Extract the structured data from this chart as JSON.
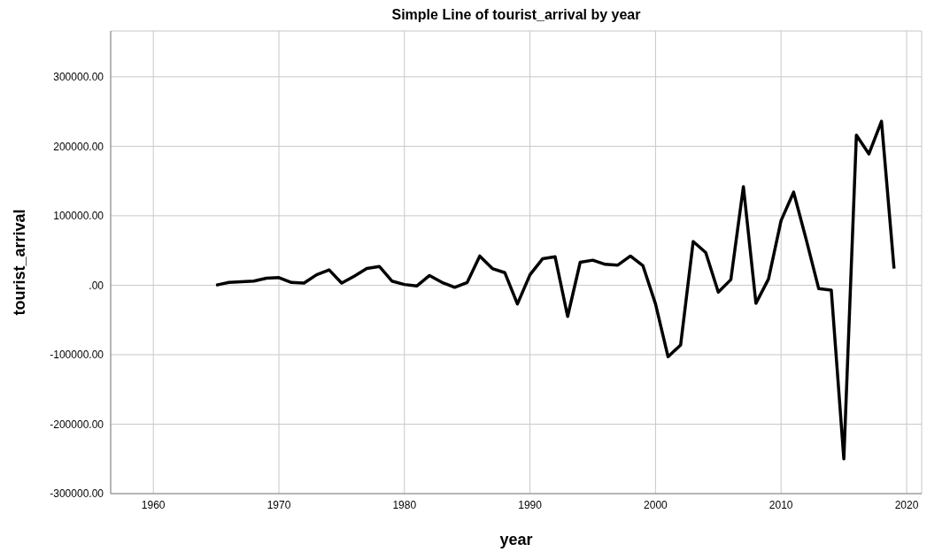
{
  "chart_data": {
    "type": "line",
    "title": "Simple Line of tourist_arrival by year",
    "xlabel": "year",
    "ylabel": "tourist_arrival",
    "x": [
      1965,
      1966,
      1967,
      1968,
      1969,
      1970,
      1971,
      1972,
      1973,
      1974,
      1975,
      1976,
      1977,
      1978,
      1979,
      1980,
      1981,
      1982,
      1983,
      1984,
      1985,
      1986,
      1987,
      1988,
      1989,
      1990,
      1991,
      1992,
      1993,
      1994,
      1995,
      1996,
      1997,
      1998,
      1999,
      2000,
      2001,
      2002,
      2003,
      2004,
      2005,
      2006,
      2007,
      2008,
      2009,
      2010,
      2011,
      2012,
      2013,
      2014,
      2015,
      2016,
      2017,
      2018,
      2019
    ],
    "series": [
      {
        "color": "#000000",
        "values": [
          0,
          4000,
          5000,
          6000,
          10000,
          11000,
          4000,
          3000,
          15000,
          22000,
          3000,
          13000,
          24000,
          27000,
          6000,
          1000,
          -1000,
          14000,
          4000,
          -3000,
          4000,
          42000,
          24000,
          18000,
          -27000,
          15000,
          38000,
          41000,
          -45000,
          33000,
          36000,
          30000,
          29000,
          42000,
          28000,
          -27000,
          -103000,
          -86000,
          63000,
          47000,
          -10000,
          8000,
          142000,
          -26000,
          9000,
          93000,
          134000,
          66000,
          -5000,
          -7000,
          -250000,
          216000,
          189000,
          236000,
          24000
        ]
      }
    ],
    "xlim": [
      1956.6,
      2021.2
    ],
    "xticks": [
      1960,
      1970,
      1980,
      1990,
      2000,
      2010,
      2020
    ],
    "ylim": [
      -300000,
      366000
    ],
    "yticks": [
      {
        "value": -300000,
        "label": "-300000.00"
      },
      {
        "value": -200000,
        "label": "-200000.00"
      },
      {
        "value": -100000,
        "label": "-100000.00"
      },
      {
        "value": 0,
        "label": ".00"
      },
      {
        "value": 100000,
        "label": "100000.00"
      },
      {
        "value": 200000,
        "label": "200000.00"
      },
      {
        "value": 300000,
        "label": "300000.00"
      }
    ],
    "grid": true,
    "marker": "none",
    "line_style": "solid"
  }
}
